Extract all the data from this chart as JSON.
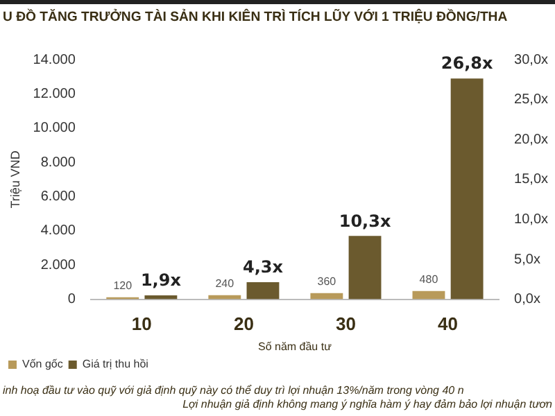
{
  "chart_data": {
    "type": "bar",
    "title": "U ĐỒ TĂNG TRƯỞNG TÀI SẢN KHI KIÊN TRÌ TÍCH LŨY VỚI 1 TRIỆU ĐỒNG/THA",
    "xlabel": "Số năm đầu tư",
    "ylabel": "Triệu VND",
    "categories": [
      "10",
      "20",
      "30",
      "40"
    ],
    "series": [
      {
        "name": "Vốn gốc",
        "color": "#b89a5a",
        "values": [
          120,
          240,
          360,
          480
        ],
        "value_labels": [
          "120",
          "240",
          "360",
          "480"
        ]
      },
      {
        "name": "Giá trị thu hồi",
        "color": "#6b5a2e",
        "values": [
          230,
          1000,
          3700,
          12900
        ]
      }
    ],
    "ylim": [
      0,
      14000
    ],
    "yticks": [
      {
        "value": 0,
        "label": "0"
      },
      {
        "value": 2000,
        "label": "2.000"
      },
      {
        "value": 4000,
        "label": "4.000"
      },
      {
        "value": 6000,
        "label": "6.000"
      },
      {
        "value": 8000,
        "label": "8.000"
      },
      {
        "value": 10000,
        "label": "10.000"
      },
      {
        "value": 12000,
        "label": "12.000"
      },
      {
        "value": 14000,
        "label": "14.000"
      }
    ],
    "y2lim": [
      0,
      30
    ],
    "y2ticks": [
      {
        "value": 0,
        "label": "0,0x"
      },
      {
        "value": 5,
        "label": "5,0x"
      },
      {
        "value": 10,
        "label": "10,0x"
      },
      {
        "value": 15,
        "label": "15,0x"
      },
      {
        "value": 20,
        "label": "20,0x"
      },
      {
        "value": 25,
        "label": "25,0x"
      },
      {
        "value": 30,
        "label": "30,0x"
      }
    ],
    "grid": false,
    "legend": "bottom left",
    "annotations": [
      {
        "text": "1,9x",
        "x": "10",
        "y": 230
      },
      {
        "text": "4,3x",
        "x": "20",
        "y": 1000
      },
      {
        "text": "10,3x",
        "x": "30",
        "y": 3700
      },
      {
        "text": "26,8x",
        "x": "40",
        "y": 12900
      },
      "inh hoạ đầu tư vào quỹ với giả định quỹ này có thể duy trì lợi nhuận 13%/năm trong vòng 40 n",
      "Lợi nhuận giả định không mang ý nghĩa hàm ý hay đảm bảo lợi nhuận tươn"
    ]
  }
}
